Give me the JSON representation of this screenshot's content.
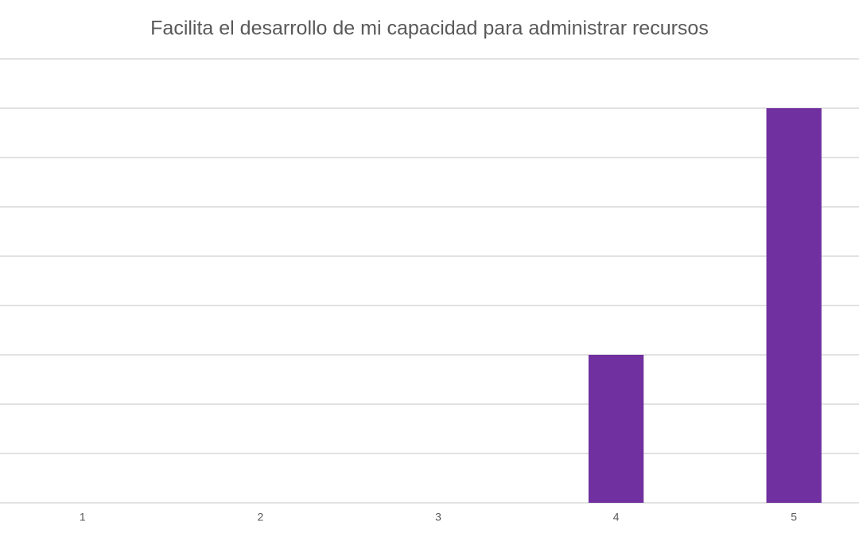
{
  "chart_data": {
    "type": "bar",
    "title": "Facilita el desarrollo de mi capacidad para administrar recursos",
    "categories": [
      "1",
      "2",
      "3",
      "4",
      "5"
    ],
    "values": [
      0,
      0,
      0,
      3,
      8
    ],
    "color": "#7030a0",
    "ylim": [
      0,
      9
    ],
    "yticks": [
      0,
      1,
      2,
      3,
      4,
      5,
      6,
      7,
      8,
      9
    ],
    "grid": true
  }
}
